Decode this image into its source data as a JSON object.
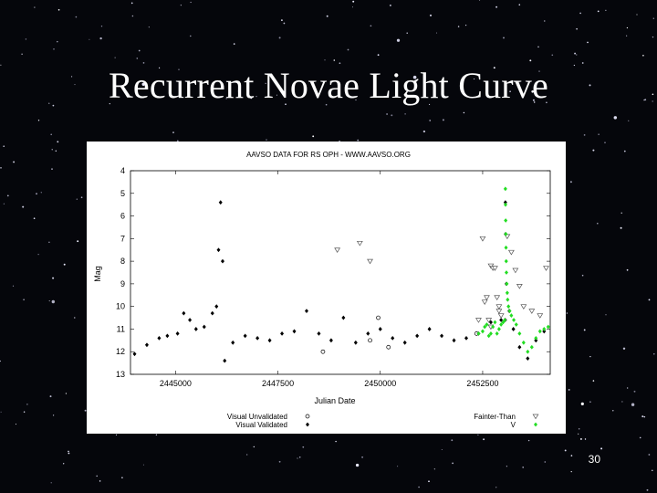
{
  "slide": {
    "title": "Recurrent Novae Light Curve",
    "page_number": "30"
  },
  "chart_data": {
    "type": "scatter",
    "title": "AAVSO DATA FOR RS OPH - WWW.AAVSO.ORG",
    "xlabel": "Julian Date",
    "ylabel": "Mag",
    "xlim": [
      2443900,
      2454150
    ],
    "ylim": [
      13,
      4
    ],
    "y_inverted": true,
    "x_ticks": [
      2445000,
      2447500,
      2450000,
      2452500
    ],
    "y_ticks": [
      4,
      5,
      6,
      7,
      8,
      9,
      10,
      11,
      12,
      13
    ],
    "legend_position": "bottom",
    "colors": {
      "visual_unvalidated": "#000000",
      "visual_validated": "#000000",
      "fainter_than": "#555555",
      "v_band": "#22dd22"
    },
    "series": [
      {
        "name": "Visual Unvalidated",
        "marker": "open-circle",
        "x": [
          2448600,
          2449750,
          2449950,
          2450200,
          2452350
        ],
        "y": [
          12.0,
          11.5,
          10.5,
          11.8,
          11.2
        ]
      },
      {
        "name": "Visual Validated",
        "marker": "filled-diamond",
        "note_quiescence": "dense coverage between 11.0 and 12.6 throughout",
        "x": [
          2444000,
          2444300,
          2444600,
          2444800,
          2445050,
          2445200,
          2445350,
          2445500,
          2445700,
          2445900,
          2446000,
          2446050,
          2446100,
          2446150,
          2446200,
          2446400,
          2446700,
          2447000,
          2447300,
          2447600,
          2447900,
          2448200,
          2448500,
          2448800,
          2449100,
          2449400,
          2449700,
          2450000,
          2450300,
          2450600,
          2450900,
          2451200,
          2451500,
          2451800,
          2452100,
          2452400,
          2452700,
          2452950,
          2453050,
          2453055,
          2453060,
          2453080,
          2453150,
          2453250,
          2453400,
          2453600,
          2453800,
          2454000
        ],
        "y": [
          12.1,
          11.7,
          11.4,
          11.3,
          11.2,
          10.3,
          10.6,
          11.0,
          10.9,
          10.3,
          10.0,
          7.5,
          5.4,
          8.0,
          12.4,
          11.6,
          11.3,
          11.4,
          11.5,
          11.2,
          11.1,
          10.2,
          11.2,
          11.5,
          10.5,
          11.6,
          11.2,
          11.0,
          11.4,
          11.6,
          11.3,
          11.0,
          11.3,
          11.5,
          11.4,
          11.2,
          10.7,
          10.6,
          10.6,
          5.4,
          6.8,
          9.0,
          10.2,
          11.0,
          11.8,
          12.3,
          11.5,
          11.1
        ]
      },
      {
        "name": "Fainter-Than",
        "marker": "open-triangle-down",
        "x": [
          2448950,
          2449500,
          2449750,
          2452500,
          2452700,
          2452750,
          2452800,
          2452550,
          2452600,
          2452850,
          2452900,
          2453100,
          2453200,
          2453300,
          2453400,
          2453500,
          2453700,
          2453900,
          2454050,
          2452400,
          2452650,
          2452700,
          2452900,
          2452950
        ],
        "y": [
          7.5,
          7.2,
          8.0,
          7.0,
          8.2,
          8.3,
          8.3,
          9.8,
          9.6,
          9.6,
          10.0,
          6.9,
          7.6,
          8.4,
          9.1,
          10.0,
          10.2,
          10.4,
          8.3,
          10.6,
          10.6,
          10.9,
          10.2,
          10.4
        ]
      },
      {
        "name": "V",
        "marker": "filled-diamond",
        "x": [
          2452400,
          2452500,
          2452550,
          2452600,
          2452650,
          2452700,
          2452750,
          2452800,
          2452850,
          2452900,
          2452950,
          2453000,
          2453040,
          2453055,
          2453058,
          2453062,
          2453066,
          2453070,
          2453075,
          2453080,
          2453090,
          2453100,
          2453110,
          2453130,
          2453160,
          2453200,
          2453260,
          2453320,
          2453400,
          2453500,
          2453600,
          2453700,
          2453800,
          2453900,
          2454000,
          2454100
        ],
        "y": [
          11.2,
          11.1,
          10.9,
          10.8,
          11.3,
          11.2,
          10.9,
          10.7,
          11.2,
          11.0,
          10.8,
          10.7,
          10.6,
          4.8,
          5.5,
          6.2,
          6.8,
          7.4,
          8.0,
          8.5,
          9.0,
          9.4,
          9.7,
          10.0,
          10.2,
          10.4,
          10.6,
          10.8,
          11.2,
          11.6,
          12.0,
          11.8,
          11.4,
          11.1,
          11.0,
          10.9
        ]
      }
    ],
    "legend": [
      {
        "label": "Visual Unvalidated",
        "symbol": "○"
      },
      {
        "label": "Visual Validated",
        "symbol": "◆"
      },
      {
        "label": "Fainter-Than",
        "symbol": "▽"
      },
      {
        "label": "V",
        "symbol": "◆"
      }
    ]
  }
}
